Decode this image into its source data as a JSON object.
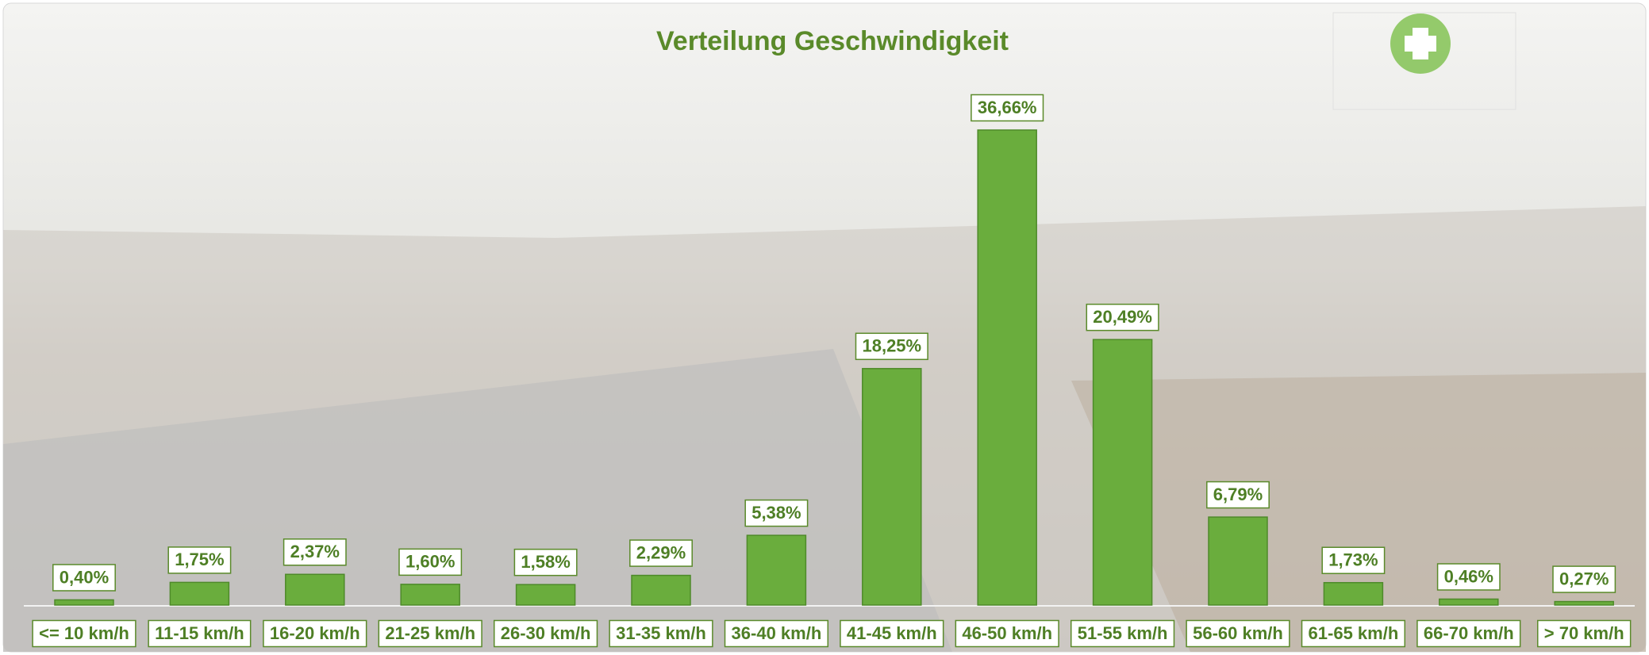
{
  "chart_data": {
    "type": "bar",
    "title": "Verteilung Geschwindigkeit",
    "categories": [
      "<= 10 km/h",
      "11-15 km/h",
      "16-20 km/h",
      "21-25 km/h",
      "26-30 km/h",
      "31-35 km/h",
      "36-40 km/h",
      "41-45 km/h",
      "46-50 km/h",
      "51-55 km/h",
      "56-60 km/h",
      "61-65 km/h",
      "66-70 km/h",
      "> 70 km/h"
    ],
    "values": [
      0.4,
      1.75,
      2.37,
      1.6,
      1.58,
      2.29,
      5.38,
      18.25,
      36.66,
      20.49,
      6.79,
      1.73,
      0.46,
      0.27
    ],
    "value_labels": [
      "0,40%",
      "1,75%",
      "2,37%",
      "1,60%",
      "1,58%",
      "2,29%",
      "5,38%",
      "18,25%",
      "36,66%",
      "20,49%",
      "6,79%",
      "1,73%",
      "0,46%",
      "0,27%"
    ],
    "color": "#6aad3d"
  }
}
